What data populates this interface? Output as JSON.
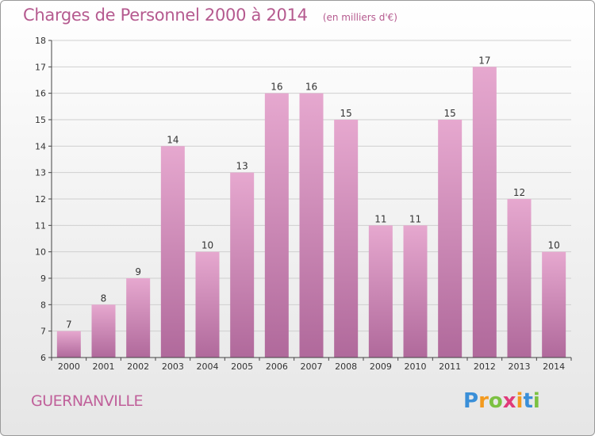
{
  "header": {
    "title": "Charges de Personnel 2000 à 2014",
    "subtitle": "(en milliers d'€)"
  },
  "footer": {
    "commune": "GUERNANVILLE",
    "logo_letters": [
      "P",
      "r",
      "o",
      "x",
      "i",
      "t",
      "i"
    ],
    "logo_colors": [
      "#3a8fd8",
      "#f39a1e",
      "#7cc142",
      "#e03a7a",
      "#f39a1e",
      "#3a8fd8",
      "#7cc142"
    ]
  },
  "colors": {
    "bar_light": "#e6a8cf",
    "bar_dark": "#b0699b",
    "axis": "#444444",
    "grid": "#cfcfcf",
    "title": "#b55a8f"
  },
  "chart_data": {
    "type": "bar",
    "categories": [
      "2000",
      "2001",
      "2002",
      "2003",
      "2004",
      "2005",
      "2006",
      "2007",
      "2008",
      "2009",
      "2010",
      "2011",
      "2012",
      "2013",
      "2014"
    ],
    "values": [
      7,
      8,
      9,
      14,
      10,
      13,
      16,
      16,
      15,
      11,
      11,
      15,
      17,
      12,
      10
    ],
    "ylim": [
      6,
      18
    ],
    "yticks": [
      6,
      7,
      8,
      9,
      10,
      11,
      12,
      13,
      14,
      15,
      16,
      17,
      18
    ],
    "grid": "horizontal",
    "data_labels": true
  }
}
